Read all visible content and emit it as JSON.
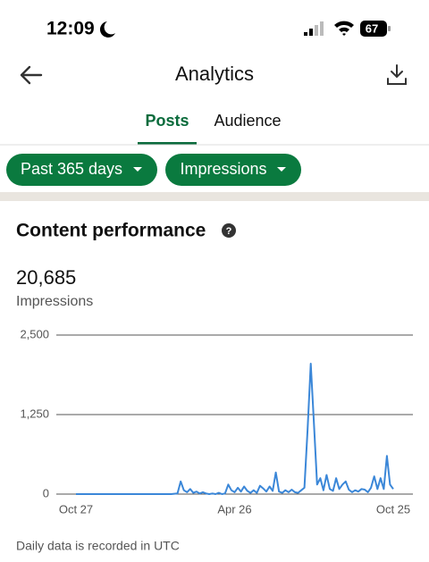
{
  "status_bar": {
    "time": "12:09",
    "battery": "67"
  },
  "header": {
    "title": "Analytics"
  },
  "tabs": [
    "Posts",
    "Audience"
  ],
  "filters": [
    "Past 365 days",
    "Impressions"
  ],
  "section": {
    "title": "Content performance",
    "total": "20,685",
    "total_label": "Impressions"
  },
  "chart_data": {
    "type": "line",
    "categories": [
      "Oct 27",
      null,
      null,
      null,
      null,
      null,
      null,
      null,
      null,
      null,
      null,
      null,
      null,
      null,
      null,
      null,
      null,
      null,
      null,
      null,
      null,
      null,
      null,
      null,
      null,
      null,
      null,
      null,
      null,
      null,
      null,
      null,
      null,
      null,
      null,
      null,
      null,
      null,
      null,
      null,
      null,
      null,
      null,
      null,
      null,
      null,
      null,
      null,
      null,
      null,
      "Apr 26",
      null,
      null,
      null,
      null,
      null,
      null,
      null,
      null,
      null,
      null,
      null,
      null,
      null,
      null,
      null,
      null,
      null,
      null,
      null,
      null,
      null,
      null,
      null,
      null,
      null,
      null,
      null,
      null,
      null,
      null,
      null,
      null,
      null,
      null,
      null,
      null,
      null,
      null,
      null,
      null,
      null,
      null,
      null,
      null,
      null,
      null,
      null,
      null,
      null,
      "Oct 25"
    ],
    "series": [
      {
        "color": "#3b87d8",
        "values": [
          0,
          0,
          0,
          0,
          0,
          0,
          0,
          0,
          0,
          0,
          0,
          0,
          0,
          0,
          0,
          0,
          0,
          0,
          0,
          0,
          0,
          0,
          0,
          0,
          0,
          0,
          0,
          0,
          0,
          0,
          0,
          5,
          10,
          200,
          60,
          30,
          80,
          20,
          40,
          10,
          30,
          10,
          0,
          10,
          0,
          20,
          0,
          10,
          150,
          60,
          30,
          100,
          40,
          120,
          50,
          20,
          60,
          20,
          130,
          90,
          40,
          120,
          50,
          340,
          40,
          20,
          60,
          30,
          70,
          30,
          20,
          60,
          100,
          1000,
          2050,
          1100,
          150,
          250,
          60,
          300,
          80,
          50,
          250,
          80,
          150,
          200,
          70,
          30,
          60,
          40,
          80,
          70,
          30,
          100,
          280,
          80,
          250,
          80,
          600,
          150,
          80
        ]
      }
    ],
    "ylim": [
      0,
      2500
    ],
    "yticks": [
      0,
      {
        "value": 1250,
        "label": "1,250"
      },
      {
        "value": 2500,
        "label": "2,500"
      }
    ],
    "grid": true
  },
  "footer": {
    "note": "Daily data is recorded in UTC"
  }
}
